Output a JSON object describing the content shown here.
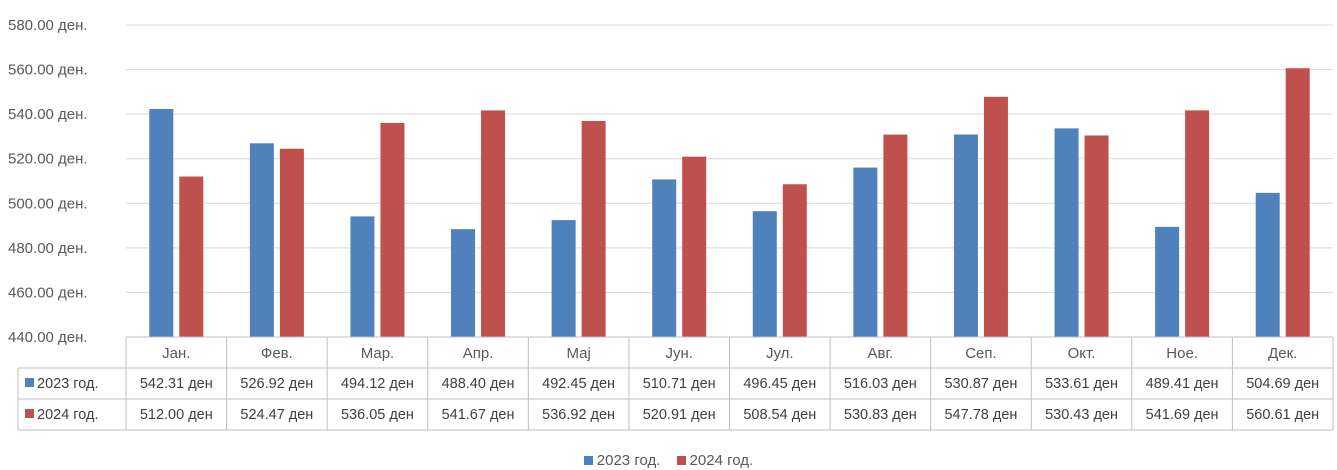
{
  "colors": {
    "2023": "#4f81bd",
    "2024": "#c0504d",
    "grid": "#d9d9d9",
    "text": "#595959"
  },
  "chart_data": {
    "type": "bar",
    "ylim": [
      440,
      580
    ],
    "yticks": [
      440,
      460,
      480,
      500,
      520,
      540,
      560,
      580
    ],
    "ytick_labels": [
      "440.00 ден.",
      "460.00 ден.",
      "480.00 ден.",
      "500.00 ден.",
      "520.00 ден.",
      "540.00 ден.",
      "560.00 ден.",
      "580.00 ден."
    ],
    "categories": [
      "Јан.",
      "Фев.",
      "Мар.",
      "Апр.",
      "Мај",
      "Јун.",
      "Јул.",
      "Авг.",
      "Сеп.",
      "Окт.",
      "Ное.",
      "Дек."
    ],
    "grid": true,
    "legend_position": "bottom",
    "series": [
      {
        "name": "2023 год.",
        "color": "#4f81bd",
        "values": [
          542.31,
          526.92,
          494.12,
          488.4,
          492.45,
          510.71,
          496.45,
          516.03,
          530.87,
          533.61,
          489.41,
          504.69
        ],
        "labels": [
          "542.31 ден",
          "526.92 ден",
          "494.12 ден",
          "488.40 ден",
          "492.45 ден",
          "510.71 ден",
          "496.45 ден",
          "516.03 ден",
          "530.87 ден",
          "533.61 ден",
          "489.41 ден",
          "504.69 ден"
        ]
      },
      {
        "name": "2024 год.",
        "color": "#c0504d",
        "values": [
          512.0,
          524.47,
          536.05,
          541.67,
          536.92,
          520.91,
          508.54,
          530.83,
          547.78,
          530.43,
          541.69,
          560.61
        ],
        "labels": [
          "512.00 ден",
          "524.47 ден",
          "536.05 ден",
          "541.67 ден",
          "536.92 ден",
          "520.91 ден",
          "508.54 ден",
          "530.83 ден",
          "547.78 ден",
          "530.43 ден",
          "541.69 ден",
          "560.61 ден"
        ]
      }
    ]
  }
}
